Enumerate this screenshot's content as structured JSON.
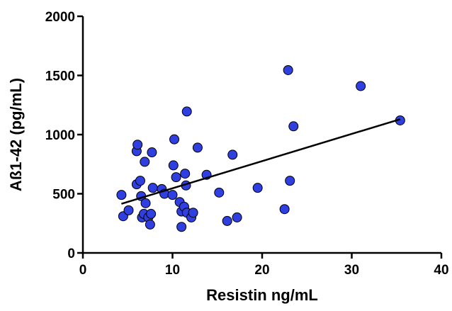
{
  "chart_data": {
    "type": "scatter",
    "title": "",
    "xlabel": "Resistin ng/mL",
    "ylabel": "Aß1-42 (pg/mL)",
    "xlim": [
      0,
      40
    ],
    "ylim": [
      0,
      2000
    ],
    "xticks": [
      0,
      10,
      20,
      30,
      40
    ],
    "yticks": [
      0,
      500,
      1000,
      1500,
      2000
    ],
    "xtick_labels": [
      "0",
      "10",
      "20",
      "30",
      "40"
    ],
    "ytick_labels": [
      "0",
      "500",
      "1000",
      "1500",
      "2000"
    ],
    "grid": false,
    "legend": "none",
    "point_color": "#2f3fe0",
    "points": [
      [
        4.3,
        490
      ],
      [
        4.5,
        310
      ],
      [
        5.1,
        360
      ],
      [
        6.0,
        860
      ],
      [
        6.1,
        915
      ],
      [
        6.0,
        580
      ],
      [
        6.4,
        610
      ],
      [
        6.5,
        480
      ],
      [
        6.6,
        300
      ],
      [
        6.8,
        330
      ],
      [
        6.9,
        770
      ],
      [
        7.0,
        420
      ],
      [
        7.3,
        300
      ],
      [
        7.5,
        240
      ],
      [
        7.6,
        330
      ],
      [
        7.7,
        850
      ],
      [
        7.8,
        550
      ],
      [
        8.8,
        540
      ],
      [
        9.1,
        500
      ],
      [
        10.0,
        490
      ],
      [
        10.1,
        740
      ],
      [
        10.2,
        960
      ],
      [
        10.4,
        640
      ],
      [
        10.8,
        430
      ],
      [
        11.0,
        350
      ],
      [
        11.0,
        220
      ],
      [
        11.3,
        390
      ],
      [
        11.4,
        670
      ],
      [
        11.5,
        570
      ],
      [
        11.6,
        1195
      ],
      [
        11.6,
        340
      ],
      [
        12.1,
        300
      ],
      [
        12.3,
        340
      ],
      [
        12.8,
        890
      ],
      [
        13.8,
        660
      ],
      [
        15.2,
        510
      ],
      [
        16.1,
        270
      ],
      [
        16.7,
        830
      ],
      [
        17.2,
        300
      ],
      [
        19.5,
        550
      ],
      [
        22.5,
        370
      ],
      [
        22.9,
        1545
      ],
      [
        23.1,
        610
      ],
      [
        23.5,
        1070
      ],
      [
        31.0,
        1410
      ],
      [
        35.4,
        1120
      ]
    ],
    "trendline": {
      "x": [
        4.3,
        35.4
      ],
      "y": [
        415,
        1130
      ]
    }
  }
}
